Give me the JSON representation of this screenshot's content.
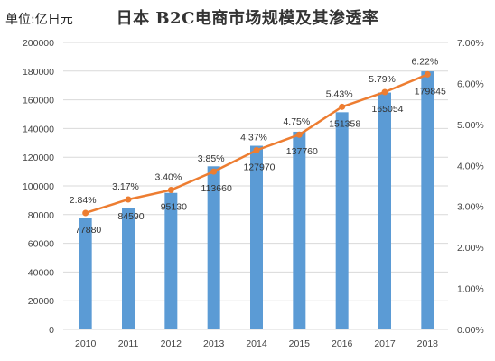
{
  "unit_label": "单位:亿日元",
  "chart_data": {
    "type": "bar",
    "title": "日本 B2C电商市场规模及其渗透率",
    "categories": [
      "2010",
      "2011",
      "2012",
      "2013",
      "2014",
      "2015",
      "2016",
      "2017",
      "2018"
    ],
    "series": [
      {
        "values": [
          77880,
          84590,
          95130,
          113660,
          127970,
          137760,
          151358,
          165054,
          179845
        ],
        "labels": [
          "77880",
          "84590",
          "95130",
          "113660",
          "127970",
          "137760",
          "151358",
          "165054",
          "179845"
        ],
        "color": "#5b9bd5"
      },
      {
        "type": "line",
        "axis": "right",
        "values": [
          2.84,
          3.17,
          3.4,
          3.85,
          4.37,
          4.75,
          5.43,
          5.79,
          6.22
        ],
        "labels": [
          "2.84%",
          "3.17%",
          "3.40%",
          "3.85%",
          "4.37%",
          "4.75%",
          "5.43%",
          "5.79%",
          "6.22%"
        ],
        "color": "#ed7d31"
      }
    ],
    "ylim": [
      0,
      200000
    ],
    "yticks": [
      "0",
      "20000",
      "40000",
      "60000",
      "80000",
      "100000",
      "120000",
      "140000",
      "160000",
      "180000",
      "200000"
    ],
    "y2lim": [
      0,
      7
    ],
    "y2ticks": [
      "0.00%",
      "1.00%",
      "2.00%",
      "3.00%",
      "4.00%",
      "5.00%",
      "6.00%",
      "7.00%"
    ],
    "grid": true
  }
}
